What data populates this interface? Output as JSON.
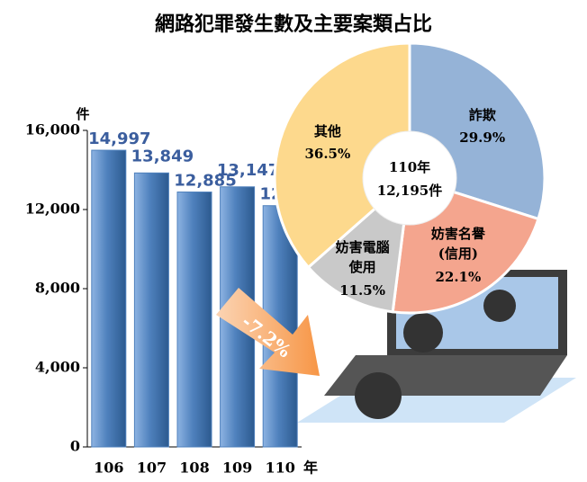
{
  "chart_data": [
    {
      "type": "bar",
      "title": "網路犯罪發生數及主要案類占比",
      "y_label": "件",
      "x_label": "年",
      "categories": [
        "106",
        "107",
        "108",
        "109",
        "110"
      ],
      "values": [
        14997,
        13849,
        12885,
        13147,
        12195
      ],
      "value_labels": [
        "14,997",
        "13,849",
        "12,885",
        "13,147",
        "12,195"
      ],
      "color": "#4f81bd",
      "ylim": [
        0,
        16000
      ],
      "yticks": [
        0,
        {
          "value": 4000,
          "label": "4,000"
        },
        {
          "value": 8000,
          "label": "8,000"
        },
        {
          "value": 12000,
          "label": "12,000"
        },
        {
          "value": 16000,
          "label": "16,000"
        }
      ],
      "annotation": "-7.2%"
    },
    {
      "type": "pie",
      "categories": [
        "詐欺",
        "妨害名譽(信用)",
        "妨害電腦使用",
        "其他"
      ],
      "values": [
        29.9,
        22.1,
        11.5,
        36.5
      ],
      "value_labels": [
        "29.9%",
        "22.1%",
        "11.5%",
        "36.5%"
      ],
      "colors": [
        "#95b3d7",
        "#f4a58e",
        "#c9c9c9",
        "#fdd98d"
      ],
      "center_label": [
        "110年",
        "12,195件"
      ]
    }
  ]
}
